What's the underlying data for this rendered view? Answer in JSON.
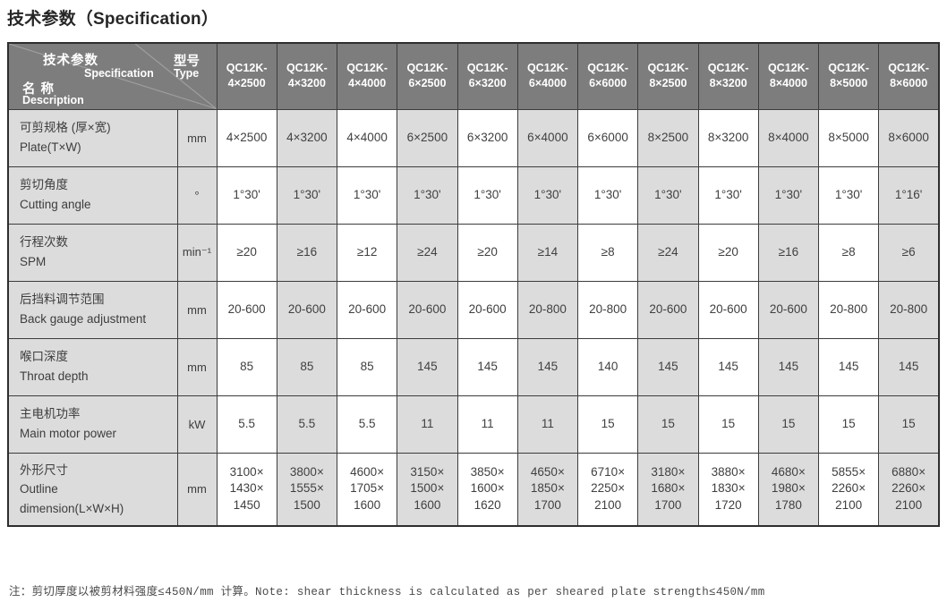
{
  "page": {
    "title": "技术参数（Specification）",
    "note": "注：剪切厚度以被剪材料强度≤450N/mm 计算。Note: shear thickness is calculated as per sheared plate strength≤450N/mm"
  },
  "colors": {
    "header_bg": "#7d7d7d",
    "header_text": "#ffffff",
    "shaded_cell_bg": "#dcdcdc",
    "plain_cell_bg": "#ffffff",
    "border": "#3c3c3c",
    "body_text": "#404040"
  },
  "table": {
    "corner": {
      "param_zh": "技术参数",
      "param_en": "Specification",
      "name_zh": "名 称",
      "name_en": "Description",
      "type_zh": "型号",
      "type_en": "Type"
    },
    "columns": [
      "QC12K-\n4×2500",
      "QC12K-\n4×3200",
      "QC12K-\n4×4000",
      "QC12K-\n6×2500",
      "QC12K-\n6×3200",
      "QC12K-\n6×4000",
      "QC12K-\n6×6000",
      "QC12K-\n8×2500",
      "QC12K-\n8×3200",
      "QC12K-\n8×4000",
      "QC12K-\n8×5000",
      "QC12K-\n8×6000"
    ],
    "rows": [
      {
        "label": "可剪规格 (厚×宽)\nPlate(T×W)",
        "unit": "mm",
        "values": [
          "4×2500",
          "4×3200",
          "4×4000",
          "6×2500",
          "6×3200",
          "6×4000",
          "6×6000",
          "8×2500",
          "8×3200",
          "8×4000",
          "8×5000",
          "8×6000"
        ]
      },
      {
        "label": "剪切角度\nCutting angle",
        "unit": "°",
        "values": [
          "1°30'",
          "1°30'",
          "1°30'",
          "1°30'",
          "1°30'",
          "1°30'",
          "1°30'",
          "1°30'",
          "1°30'",
          "1°30'",
          "1°30'",
          "1°16'"
        ]
      },
      {
        "label": "行程次数\nSPM",
        "unit": "min⁻¹",
        "values": [
          "≥20",
          "≥16",
          "≥12",
          "≥24",
          "≥20",
          "≥14",
          "≥8",
          "≥24",
          "≥20",
          "≥16",
          "≥8",
          "≥6"
        ]
      },
      {
        "label": "后挡料调节范围\nBack gauge adjustment",
        "unit": "mm",
        "values": [
          "20-600",
          "20-600",
          "20-600",
          "20-600",
          "20-600",
          "20-800",
          "20-800",
          "20-600",
          "20-600",
          "20-600",
          "20-800",
          "20-800"
        ]
      },
      {
        "label": "喉口深度\nThroat depth",
        "unit": "mm",
        "values": [
          "85",
          "85",
          "85",
          "145",
          "145",
          "145",
          "140",
          "145",
          "145",
          "145",
          "145",
          "145"
        ]
      },
      {
        "label": "主电机功率\nMain motor power",
        "unit": "kW",
        "values": [
          "5.5",
          "5.5",
          "5.5",
          "11",
          "11",
          "11",
          "15",
          "15",
          "15",
          "15",
          "15",
          "15"
        ]
      },
      {
        "label": "外形尺寸\nOutline\ndimension(L×W×H)",
        "unit": "mm",
        "values": [
          "3100×\n1430×\n1450",
          "3800×\n1555×\n1500",
          "4600×\n1705×\n1600",
          "3150×\n1500×\n1600",
          "3850×\n1600×\n1620",
          "4650×\n1850×\n1700",
          "6710×\n2250×\n2100",
          "3180×\n1680×\n1700",
          "3880×\n1830×\n1720",
          "4680×\n1980×\n1780",
          "5855×\n2260×\n2100",
          "6880×\n2260×\n2100"
        ]
      }
    ]
  }
}
